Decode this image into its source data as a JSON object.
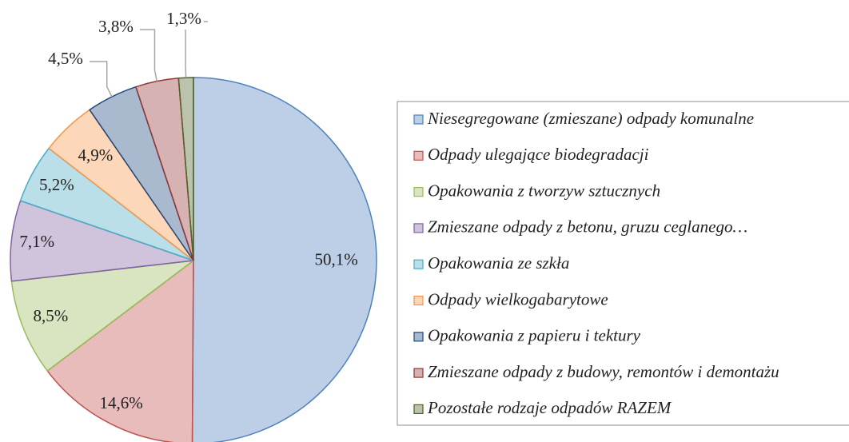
{
  "chart_data": {
    "type": "pie",
    "categories": [
      "Niesegregowane (zmieszane) odpady komunalne",
      "Odpady ulegające biodegradacji",
      "Opakowania z tworzyw sztucznych",
      "Zmieszane odpady z betonu, gruzu ceglanego…",
      "Opakowania ze szkła",
      "Odpady wielkogabarytowe",
      "Opakowania z papieru i tektury",
      "Zmieszane odpady z budowy, remontów i demontażu",
      "Pozostałe rodzaje odpadów RAZEM"
    ],
    "values": [
      50.1,
      14.6,
      8.5,
      7.1,
      5.2,
      4.9,
      4.5,
      3.8,
      1.3
    ],
    "value_labels": [
      "50,1%",
      "14,6%",
      "8,5%",
      "7,1%",
      "5,2%",
      "4,9%",
      "4,5%",
      "3,8%",
      "1,3%"
    ],
    "colors": [
      "#4f81bd",
      "#c0504d",
      "#9bbb59",
      "#8064a2",
      "#4bacc6",
      "#f79646",
      "#1f497d",
      "#943634",
      "#4f6228"
    ],
    "legend": "right"
  }
}
